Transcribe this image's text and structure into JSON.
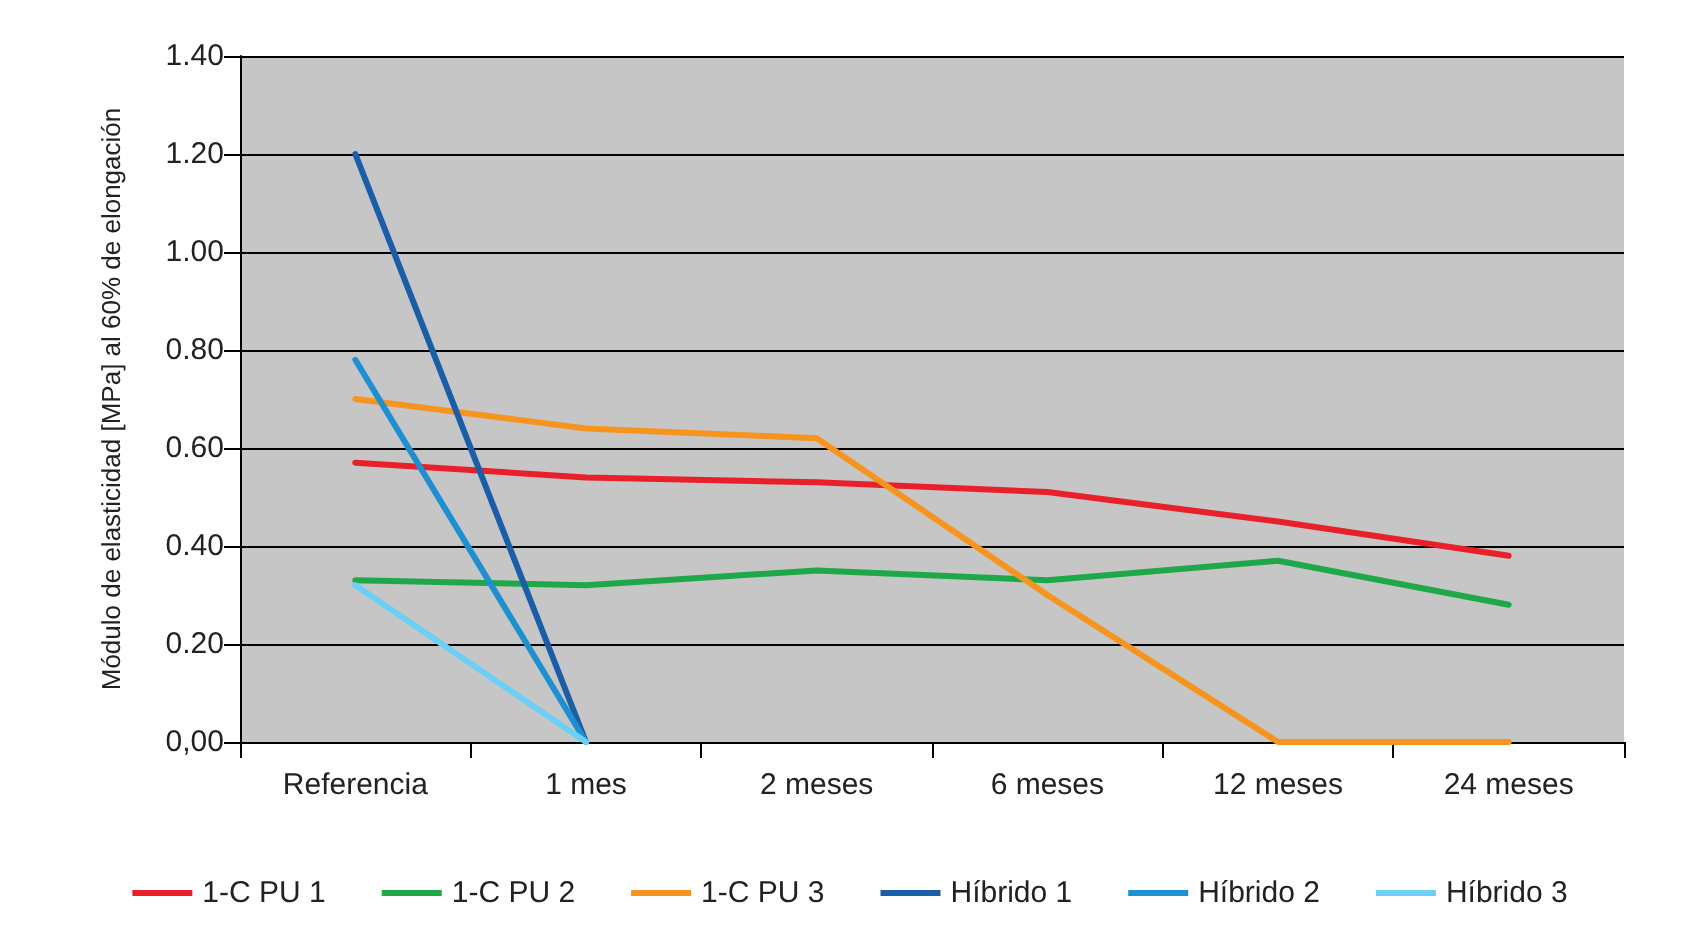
{
  "chart_data": {
    "type": "line",
    "ylabel": "Módulo de elasticidad [MPa] al 60% de elongación",
    "categories": [
      "Referencia",
      "1 mes",
      "2 meses",
      "6 meses",
      "12 meses",
      "24 meses"
    ],
    "series": [
      {
        "name": "1-C PU 1",
        "color": "#e8202a",
        "values": [
          0.57,
          0.54,
          0.53,
          0.51,
          0.45,
          0.38
        ]
      },
      {
        "name": "1-C PU 2",
        "color": "#1ea84a",
        "values": [
          0.33,
          0.32,
          0.35,
          0.33,
          0.37,
          0.28
        ]
      },
      {
        "name": "1-C PU 3",
        "color": "#f7941d",
        "values": [
          0.7,
          0.64,
          0.62,
          0.3,
          0,
          0
        ]
      },
      {
        "name": "Híbrido 1",
        "color": "#1a5ea8",
        "values": [
          1.2,
          0,
          null,
          null,
          null,
          null
        ]
      },
      {
        "name": "Híbrido 2",
        "color": "#1e8fd0",
        "values": [
          0.78,
          0,
          null,
          null,
          null,
          null
        ]
      },
      {
        "name": "Híbrido 3",
        "color": "#6ccff6",
        "values": [
          0.32,
          0,
          null,
          null,
          null,
          null
        ]
      }
    ],
    "ylim": [
      0,
      1.4
    ],
    "yticks": [
      {
        "value": 0,
        "label": "0,00"
      },
      {
        "value": 0.2,
        "label": "0.20"
      },
      {
        "value": 0.4,
        "label": "0.40"
      },
      {
        "value": 0.6,
        "label": "0.60"
      },
      {
        "value": 0.8,
        "label": "0.80"
      },
      {
        "value": 1.0,
        "label": "1.00"
      },
      {
        "value": 1.2,
        "label": "1.20"
      },
      {
        "value": 1.4,
        "label": "1.40"
      }
    ],
    "grid": "y",
    "legend": "bottom",
    "marker": "none",
    "line_style": "solid"
  }
}
